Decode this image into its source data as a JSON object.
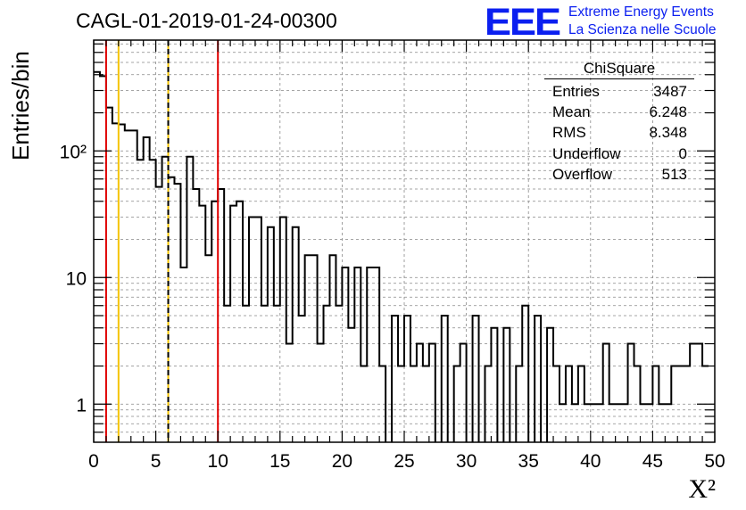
{
  "header": {
    "title": "CAGL-01-2019-01-24-00300",
    "logo_text": "EEE",
    "org_line1": "Extreme Energy Events",
    "org_line2": "La Scienza nelle Scuole"
  },
  "stats_box": {
    "name": "ChiSquare",
    "rows": [
      {
        "label": "Entries",
        "value": "3487"
      },
      {
        "label": "Mean",
        "value": "6.248"
      },
      {
        "label": "RMS",
        "value": "8.348"
      },
      {
        "label": "Underflow",
        "value": "0"
      },
      {
        "label": "Overflow",
        "value": "513"
      }
    ]
  },
  "chart_data": {
    "type": "histogram",
    "title": "CAGL-01-2019-01-24-00300",
    "xlabel": "X²",
    "ylabel": "Entries/bin",
    "xlim": [
      0,
      50
    ],
    "ylim": [
      0.5,
      750
    ],
    "yscale": "log",
    "grid": true,
    "bin_width": 0.5,
    "x_ticks": [
      "0",
      "5",
      "10",
      "15",
      "20",
      "25",
      "30",
      "35",
      "40",
      "45",
      "50"
    ],
    "y_ticks": [
      {
        "value": 1,
        "label": "1"
      },
      {
        "value": 10,
        "label": "10"
      },
      {
        "value": 100,
        "label": "10²"
      }
    ],
    "counts": [
      420,
      390,
      220,
      165,
      162,
      145,
      145,
      85,
      128,
      85,
      52,
      90,
      62,
      55,
      12,
      90,
      50,
      37,
      15,
      40,
      50,
      6,
      37,
      40,
      6,
      30,
      30,
      6,
      25,
      6,
      30,
      3,
      25,
      5,
      15,
      15,
      3,
      6,
      15,
      6,
      12,
      4,
      12,
      2,
      12,
      12,
      2,
      0,
      5,
      2,
      5,
      2,
      3,
      2,
      3,
      0,
      5,
      0,
      2,
      3,
      0,
      5,
      0,
      2,
      4,
      0,
      4,
      0,
      2,
      6,
      0,
      5,
      0,
      4,
      2,
      1,
      2,
      1,
      2,
      1,
      1,
      1,
      3,
      1,
      1,
      1,
      3,
      2,
      1,
      1,
      2,
      1,
      1,
      2,
      2,
      2,
      3,
      3,
      2
    ],
    "vertical_lines": [
      {
        "x": 1,
        "color": "#e00000",
        "style": "solid"
      },
      {
        "x": 2,
        "color": "#f5c400",
        "style": "solid"
      },
      {
        "x": 6,
        "color": "#f5c400",
        "style": "solid"
      },
      {
        "x": 6,
        "color": "#000000",
        "style": "dashed"
      },
      {
        "x": 10,
        "color": "#e00000",
        "style": "solid"
      }
    ]
  }
}
